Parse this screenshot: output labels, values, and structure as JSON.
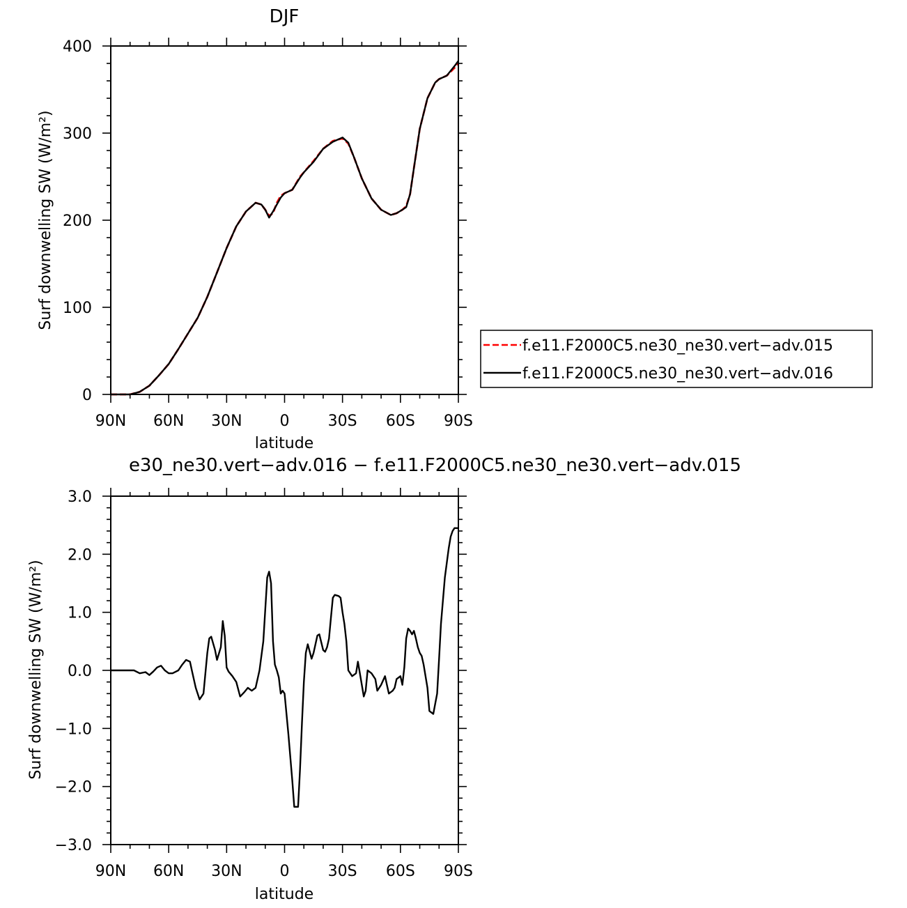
{
  "chart_data": [
    {
      "type": "line",
      "title": "DJF",
      "xlabel": "latitude",
      "ylabel": "Surf downwelling SW (W/m²)",
      "xlim": [
        -90,
        90
      ],
      "ylim": [
        0,
        400
      ],
      "x_ticks": [
        -90,
        -60,
        -30,
        0,
        30,
        60,
        90
      ],
      "x_tick_labels": [
        "90N",
        "60N",
        "30N",
        "0",
        "30S",
        "60S",
        "90S"
      ],
      "y_ticks": [
        0,
        100,
        200,
        300,
        400
      ],
      "y_tick_labels": [
        "0",
        "100",
        "200",
        "300",
        "400"
      ],
      "legend_position": "right",
      "series": [
        {
          "name": "f.e11.F2000C5.ne30_ne30.vert−adv.015",
          "color": "#ff0000",
          "dash": "dashed",
          "x": [
            -90,
            -80,
            -75,
            -70,
            -65,
            -60,
            -55,
            -50,
            -45,
            -40,
            -35,
            -30,
            -25,
            -20,
            -15,
            -12,
            -10,
            -8,
            -6,
            -4,
            -2,
            0,
            4,
            8,
            10,
            15,
            20,
            25,
            30,
            33,
            36,
            40,
            45,
            50,
            55,
            58,
            61,
            63,
            65,
            67,
            70,
            74,
            78,
            80,
            84,
            88,
            90
          ],
          "y": [
            0,
            0,
            3,
            10,
            22,
            35,
            52,
            70,
            88,
            112,
            140,
            168,
            193,
            210,
            220,
            218,
            212,
            205,
            208,
            220,
            228,
            231,
            235,
            250,
            255,
            268,
            282,
            291,
            294,
            288,
            272,
            248,
            225,
            212,
            206,
            208,
            212,
            216,
            230,
            260,
            305,
            340,
            358,
            362,
            366,
            375,
            381
          ]
        },
        {
          "name": "f.e11.F2000C5.ne30_ne30.vert−adv.016",
          "color": "#000000",
          "dash": "solid",
          "x": [
            -90,
            -80,
            -75,
            -70,
            -65,
            -60,
            -55,
            -50,
            -45,
            -40,
            -35,
            -30,
            -25,
            -20,
            -15,
            -12,
            -10,
            -8,
            -6,
            -4,
            -2,
            0,
            4,
            8,
            10,
            15,
            20,
            25,
            30,
            33,
            36,
            40,
            45,
            50,
            55,
            58,
            61,
            63,
            65,
            67,
            70,
            74,
            78,
            80,
            84,
            88,
            90
          ],
          "y": [
            0,
            0,
            3,
            10,
            22,
            35,
            52,
            70,
            88,
            112,
            140,
            168,
            193,
            210,
            220,
            218,
            212,
            203,
            210,
            218,
            226,
            231,
            235,
            249,
            255,
            267,
            282,
            290,
            295,
            289,
            272,
            248,
            225,
            212,
            206,
            208,
            212,
            215,
            230,
            260,
            305,
            340,
            358,
            362,
            366,
            377,
            383
          ]
        }
      ]
    },
    {
      "type": "line",
      "title": "e30_ne30.vert−adv.016 − f.e11.F2000C5.ne30_ne30.vert−adv.015",
      "xlabel": "latitude",
      "ylabel": "Surf downwelling SW (W/m²)",
      "xlim": [
        -90,
        90
      ],
      "ylim": [
        -3.0,
        3.0
      ],
      "x_ticks": [
        -90,
        -60,
        -30,
        0,
        30,
        60,
        90
      ],
      "x_tick_labels": [
        "90N",
        "60N",
        "30N",
        "0",
        "30S",
        "60S",
        "90S"
      ],
      "y_ticks": [
        -3.0,
        -2.0,
        -1.0,
        0.0,
        1.0,
        2.0,
        3.0
      ],
      "y_tick_labels": [
        "−3.0",
        "−2.0",
        "−1.0",
        "0.0",
        "1.0",
        "2.0",
        "3.0"
      ],
      "series": [
        {
          "color": "#000000",
          "dash": "solid",
          "x": [
            -90,
            -78,
            -75,
            -72,
            -70,
            -68,
            -66,
            -64,
            -62,
            -60,
            -58,
            -55,
            -53,
            -51,
            -49,
            -48,
            -46,
            -44,
            -42,
            -40,
            -39,
            -38,
            -36,
            -35,
            -33,
            -32,
            -31,
            -30,
            -29,
            -27,
            -25,
            -23,
            -21,
            -19,
            -17,
            -15,
            -13,
            -11,
            -9,
            -8,
            -7,
            -6,
            -5,
            -4,
            -3,
            -2,
            -1,
            0,
            2,
            3,
            4,
            5,
            7,
            8,
            9,
            10,
            11,
            12,
            14,
            15,
            17,
            18,
            20,
            21,
            22,
            23,
            24,
            25,
            26,
            28,
            29,
            30,
            31,
            32,
            33,
            35,
            37,
            38,
            40,
            41,
            42,
            43,
            45,
            47,
            48,
            50,
            52,
            53,
            54,
            56,
            57,
            58,
            60,
            61,
            62,
            63,
            64,
            65,
            66,
            67,
            68,
            69,
            70,
            71,
            72,
            74,
            75,
            77,
            79,
            80,
            81,
            83,
            85,
            86,
            87,
            88,
            89,
            90
          ],
          "y": [
            0.0,
            0.0,
            -0.05,
            -0.03,
            -0.08,
            -0.02,
            0.05,
            0.08,
            0.0,
            -0.05,
            -0.05,
            0.0,
            0.1,
            0.18,
            0.15,
            0.0,
            -0.3,
            -0.5,
            -0.4,
            0.3,
            0.55,
            0.58,
            0.35,
            0.18,
            0.4,
            0.85,
            0.6,
            0.05,
            -0.02,
            -0.1,
            -0.2,
            -0.45,
            -0.38,
            -0.3,
            -0.35,
            -0.3,
            0.0,
            0.5,
            1.6,
            1.7,
            1.5,
            0.5,
            0.1,
            0.0,
            -0.12,
            -0.4,
            -0.35,
            -0.4,
            -1.1,
            -1.5,
            -1.9,
            -2.35,
            -2.35,
            -1.7,
            -0.9,
            -0.2,
            0.3,
            0.45,
            0.2,
            0.3,
            0.6,
            0.62,
            0.35,
            0.32,
            0.4,
            0.55,
            0.9,
            1.25,
            1.3,
            1.28,
            1.25,
            1.0,
            0.8,
            0.5,
            0.0,
            -0.1,
            -0.05,
            0.15,
            -0.25,
            -0.45,
            -0.35,
            0.0,
            -0.05,
            -0.15,
            -0.35,
            -0.25,
            -0.1,
            -0.25,
            -0.4,
            -0.35,
            -0.3,
            -0.15,
            -0.1,
            -0.25,
            0.05,
            0.55,
            0.72,
            0.68,
            0.62,
            0.68,
            0.55,
            0.4,
            0.3,
            0.25,
            0.1,
            -0.3,
            -0.7,
            -0.75,
            -0.4,
            0.2,
            0.8,
            1.6,
            2.1,
            2.3,
            2.4,
            2.45,
            2.45,
            2.45
          ]
        }
      ]
    }
  ]
}
